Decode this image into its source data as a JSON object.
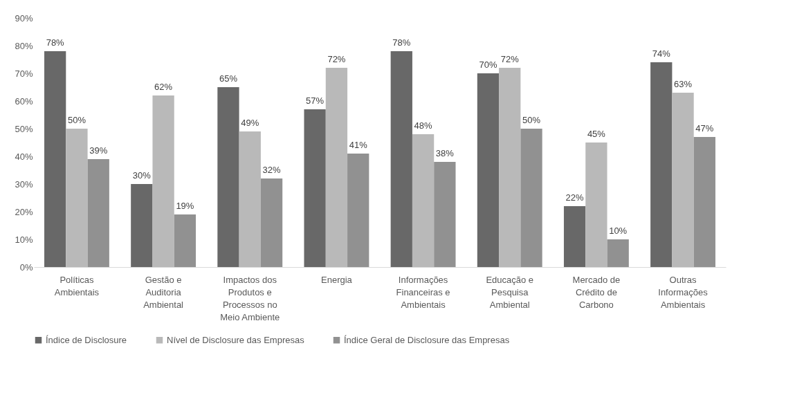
{
  "chart_data": {
    "type": "bar",
    "categories": [
      "Políticas Ambientais",
      "Gestão e Auditoria Ambiental",
      "Impactos dos Produtos e Processos no Meio Ambiente",
      "Energia",
      "Informações Financeiras e Ambientais",
      "Educação e Pesquisa Ambiental",
      "Mercado de Crédito de Carbono",
      "Outras Informações Ambientais"
    ],
    "series": [
      {
        "name": "Índice de Disclosure",
        "color": "#686868",
        "values": [
          78,
          30,
          65,
          57,
          78,
          70,
          22,
          74
        ],
        "value_labels": [
          "78%",
          "30%",
          "65%",
          "57%",
          "78%",
          "70%",
          "22%",
          "74%"
        ]
      },
      {
        "name": "Nível de Disclosure das Empresas",
        "color": "#b9b9b9",
        "values": [
          50,
          62,
          49,
          72,
          48,
          72,
          45,
          63
        ],
        "value_labels": [
          "50%",
          "62%",
          "49%",
          "72%",
          "48%",
          "72%",
          "45%",
          "63%"
        ]
      },
      {
        "name": "Índice Geral de Disclosure das Empresas",
        "color": "#919191",
        "values": [
          39,
          19,
          32,
          41,
          38,
          50,
          10,
          47
        ],
        "value_labels": [
          "39%",
          "19%",
          "32%",
          "41%",
          "38%",
          "50%",
          "10%",
          "47%"
        ]
      }
    ],
    "ylim": [
      0,
      90
    ],
    "yticks": [
      {
        "value": 0,
        "label": "0%"
      },
      {
        "value": 10,
        "label": "10%"
      },
      {
        "value": 20,
        "label": "20%"
      },
      {
        "value": 30,
        "label": "30%"
      },
      {
        "value": 40,
        "label": "40%"
      },
      {
        "value": 50,
        "label": "50%"
      },
      {
        "value": 60,
        "label": "60%"
      },
      {
        "value": 70,
        "label": "70%"
      },
      {
        "value": 80,
        "label": "80%"
      },
      {
        "value": 90,
        "label": "90%"
      }
    ],
    "grid": false,
    "legend": "bottom"
  }
}
